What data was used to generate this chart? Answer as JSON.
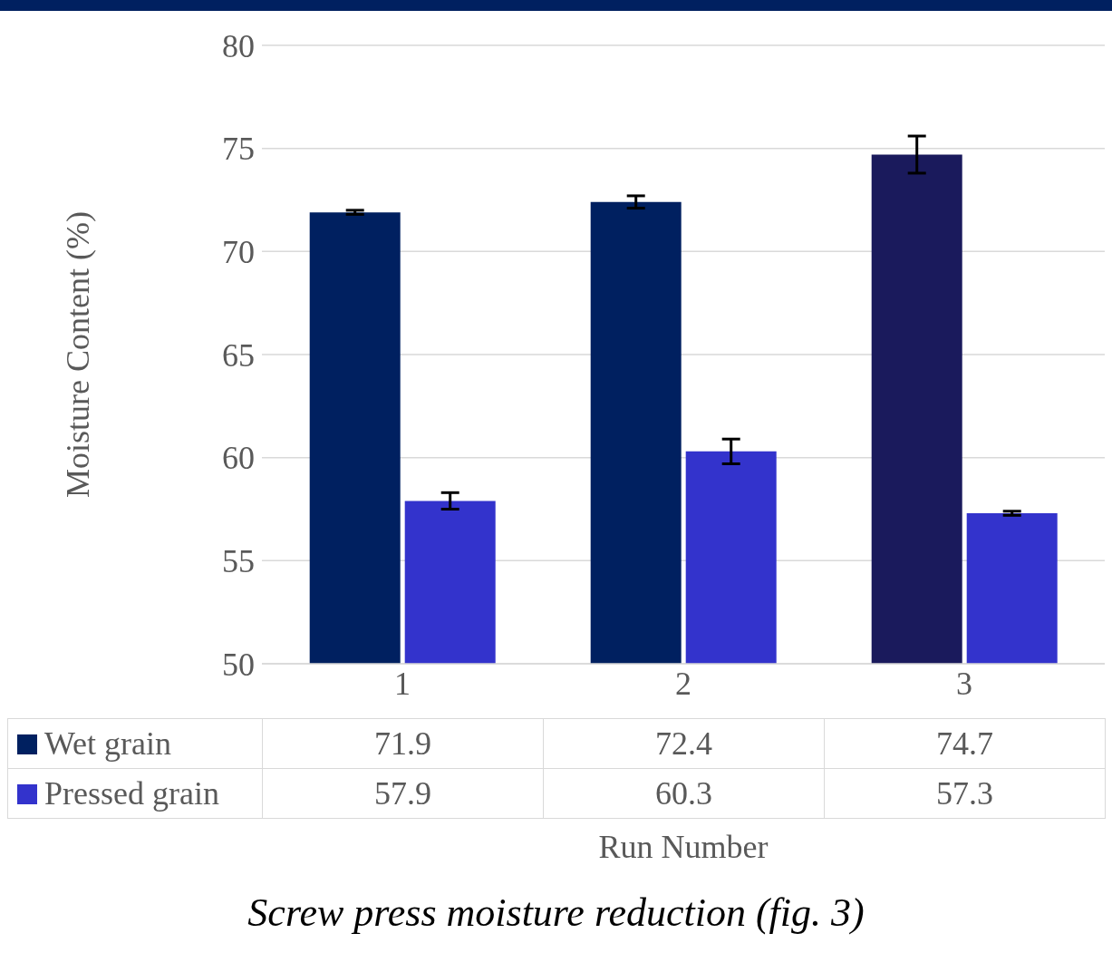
{
  "chart_data": {
    "type": "bar",
    "title": "Screw press moisture reduction (fig. 3)",
    "xlabel": "Run Number",
    "ylabel": "Moisture Content (%)",
    "categories": [
      "1",
      "2",
      "3"
    ],
    "series": [
      {
        "name": "Wet grain",
        "color": "#002060",
        "colors": [
          "#002060",
          "#002060",
          "#1a1a5c"
        ],
        "values": [
          71.9,
          72.4,
          74.7
        ],
        "errors": [
          0.1,
          0.3,
          0.9
        ]
      },
      {
        "name": "Pressed grain",
        "color": "#3333cc",
        "values": [
          57.9,
          60.3,
          57.3
        ],
        "errors": [
          0.4,
          0.6,
          0.1
        ]
      }
    ],
    "ylim": [
      50,
      80
    ],
    "yticks": [
      50,
      55,
      60,
      65,
      70,
      75,
      80
    ],
    "grid": "y",
    "legend": "bottom",
    "data_labels": true
  }
}
